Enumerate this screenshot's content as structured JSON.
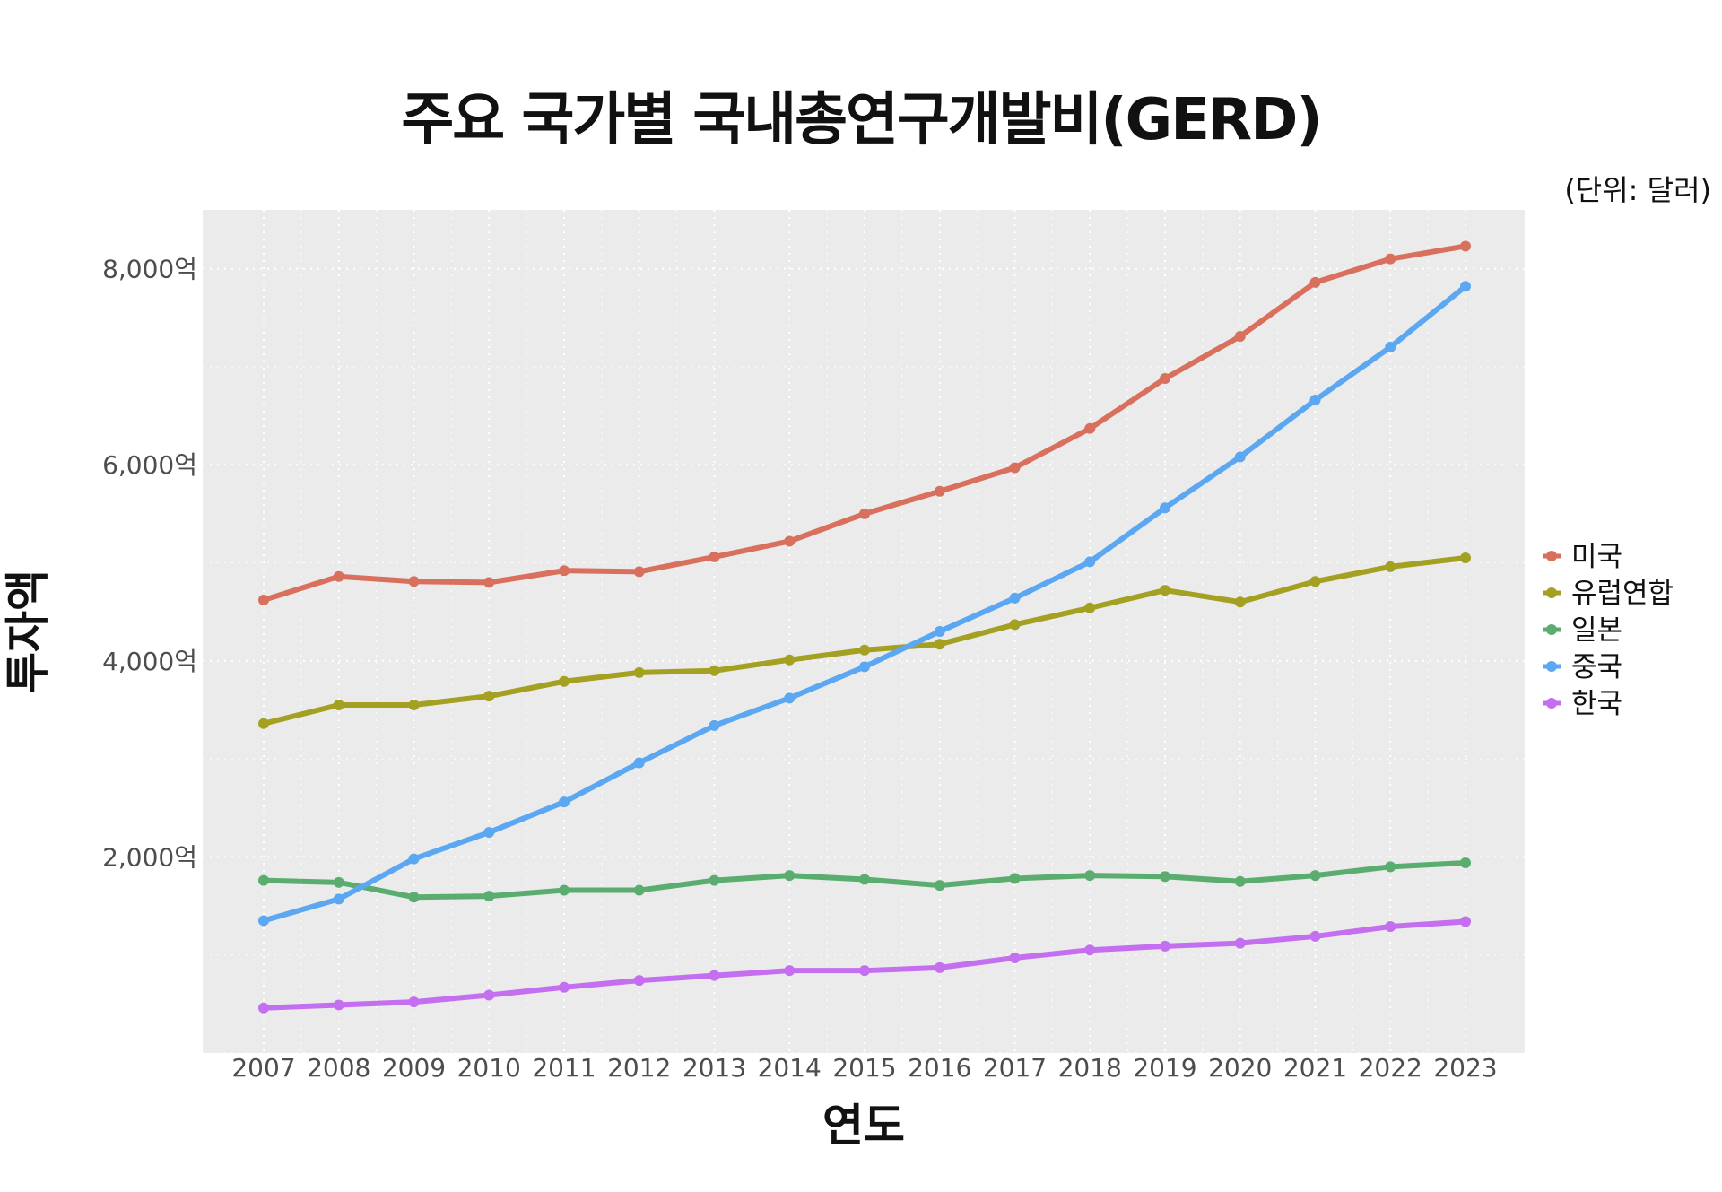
{
  "chart_data": {
    "type": "line",
    "title": "주요 국가별 국내총연구개발비(GERD)",
    "unit_note": "(단위: 달러)",
    "xlabel": "연도",
    "ylabel": "투자액",
    "x": [
      2007,
      2008,
      2009,
      2010,
      2011,
      2012,
      2013,
      2014,
      2015,
      2016,
      2017,
      2018,
      2019,
      2020,
      2021,
      2022,
      2023
    ],
    "x_tick_labels": [
      "2007",
      "2008",
      "2009",
      "2010",
      "2011",
      "2012",
      "2013",
      "2014",
      "2015",
      "2016",
      "2017",
      "2018",
      "2019",
      "2020",
      "2021",
      "2022",
      "2023"
    ],
    "ylim": [
      0,
      8600
    ],
    "y_ticks": [
      2000,
      4000,
      6000,
      8000
    ],
    "y_tick_labels": [
      "2,000억",
      "4,000억",
      "6,000억",
      "8,000억"
    ],
    "grid": true,
    "legend_position": "right",
    "series": [
      {
        "name": "미국",
        "color": "#D9705E",
        "values": [
          4620,
          4860,
          4810,
          4800,
          4920,
          4910,
          5060,
          5220,
          5500,
          5730,
          5970,
          6370,
          6880,
          7310,
          7860,
          8100,
          8230
        ]
      },
      {
        "name": "유럽연합",
        "color": "#A3A022",
        "values": [
          3360,
          3550,
          3550,
          3640,
          3790,
          3880,
          3900,
          4010,
          4110,
          4170,
          4370,
          4540,
          4720,
          4600,
          4810,
          4960,
          5050
        ]
      },
      {
        "name": "일본",
        "color": "#5BAD6F",
        "values": [
          1760,
          1740,
          1590,
          1600,
          1660,
          1660,
          1760,
          1810,
          1770,
          1710,
          1780,
          1810,
          1800,
          1750,
          1810,
          1900,
          1940
        ]
      },
      {
        "name": "중국",
        "color": "#5BA7F1",
        "values": [
          1350,
          1570,
          1980,
          2250,
          2560,
          2960,
          3340,
          3620,
          3940,
          4300,
          4640,
          5010,
          5560,
          6080,
          6660,
          7200,
          7820
        ]
      },
      {
        "name": "한국",
        "color": "#C46FF0",
        "values": [
          460,
          490,
          520,
          590,
          670,
          740,
          790,
          840,
          840,
          870,
          970,
          1050,
          1090,
          1120,
          1190,
          1290,
          1340
        ]
      }
    ]
  }
}
